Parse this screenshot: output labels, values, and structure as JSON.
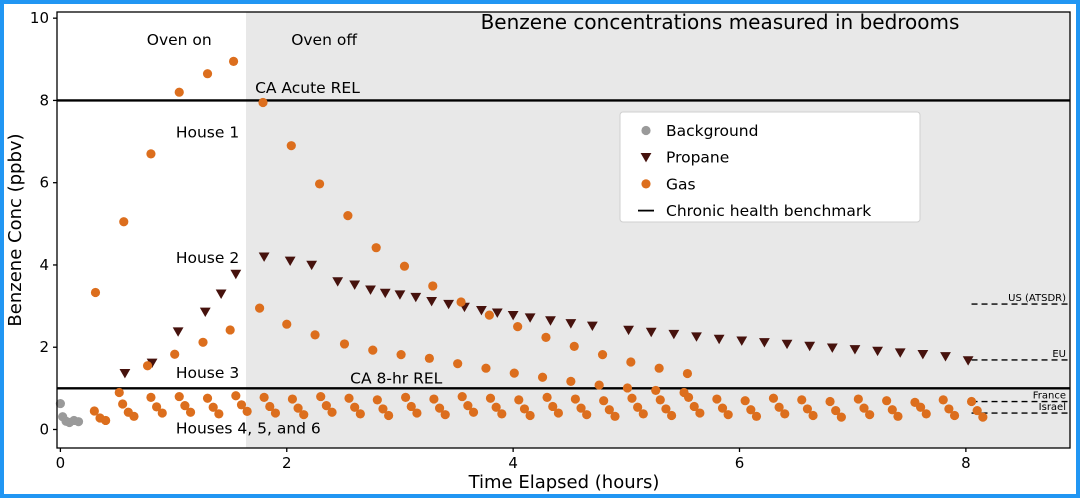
{
  "window": {
    "border_color": "#2196f3",
    "background": "#ffffff"
  },
  "chart_data": {
    "type": "scatter",
    "title": "Benzene concentrations measured in bedrooms",
    "xlabel": "Time Elapsed (hours)",
    "ylabel": "Benzene Conc (ppbv)",
    "xlim": [
      -0.03,
      8.92
    ],
    "ylim": [
      -0.45,
      10.15
    ],
    "xticks": [
      0,
      2,
      4,
      6,
      8
    ],
    "yticks": [
      0,
      2,
      4,
      6,
      8,
      10
    ],
    "grid": false,
    "colors": {
      "gas": "#dc6e1d",
      "propane": "#46120d",
      "background": "#9a9a9a",
      "region": "#e8e8e8",
      "benchmark": "#000000"
    },
    "oven_off_region": {
      "x_start": 1.64,
      "meaning": "Oven off period shading"
    },
    "reference_lines": [
      {
        "label": "CA Acute REL",
        "y": 8
      },
      {
        "label": "CA 8-hr REL",
        "y": 1
      }
    ],
    "benchmark_lines": [
      {
        "label": "US (ATSDR)",
        "y": 3.05
      },
      {
        "label": "EU",
        "y": 1.69
      },
      {
        "label": "France",
        "y": 0.68
      },
      {
        "label": "Israel",
        "y": 0.4
      }
    ],
    "annotations": [
      {
        "text": "Oven on",
        "x": 1.05,
        "y": 9.35,
        "anchor": "middle"
      },
      {
        "text": "Oven off",
        "x": 2.33,
        "y": 9.35,
        "anchor": "middle"
      },
      {
        "text": "CA Acute REL",
        "x": 1.72,
        "y": 8.18,
        "anchor": "start"
      },
      {
        "text": "House 1",
        "x": 1.02,
        "y": 7.1,
        "anchor": "start"
      },
      {
        "text": "House 2",
        "x": 1.02,
        "y": 4.05,
        "anchor": "start"
      },
      {
        "text": "House 3",
        "x": 1.02,
        "y": 1.25,
        "anchor": "start"
      },
      {
        "text": "Houses 4, 5, and 6",
        "x": 1.02,
        "y": -0.1,
        "anchor": "start"
      },
      {
        "text": "CA 8-hr REL",
        "x": 2.56,
        "y": 1.12,
        "anchor": "start"
      }
    ],
    "legend": [
      {
        "label": "Background",
        "marker": "circle",
        "series": "background"
      },
      {
        "label": "Propane",
        "marker": "triangle-down",
        "series": "propane"
      },
      {
        "label": "Gas",
        "marker": "circle",
        "series": "gas"
      },
      {
        "label": "Chronic health benchmark",
        "marker": "dash",
        "series": "benchmark"
      }
    ],
    "series": {
      "background": {
        "marker": "circle",
        "points": [
          [
            0.0,
            0.63
          ],
          [
            0.02,
            0.31
          ],
          [
            0.05,
            0.2
          ],
          [
            0.08,
            0.17
          ],
          [
            0.12,
            0.22
          ],
          [
            0.16,
            0.19
          ]
        ]
      },
      "propane": {
        "marker": "triangle-down",
        "label": "House 2",
        "points": [
          [
            0.57,
            1.37
          ],
          [
            0.81,
            1.62
          ],
          [
            1.04,
            2.38
          ],
          [
            1.28,
            2.86
          ],
          [
            1.42,
            3.3
          ],
          [
            1.55,
            3.78
          ],
          [
            1.8,
            4.2
          ],
          [
            2.03,
            4.1
          ],
          [
            2.22,
            4.0
          ],
          [
            2.45,
            3.6
          ],
          [
            2.6,
            3.52
          ],
          [
            2.74,
            3.4
          ],
          [
            2.87,
            3.32
          ],
          [
            3.0,
            3.28
          ],
          [
            3.14,
            3.22
          ],
          [
            3.28,
            3.12
          ],
          [
            3.43,
            3.05
          ],
          [
            3.57,
            2.98
          ],
          [
            3.72,
            2.9
          ],
          [
            3.86,
            2.84
          ],
          [
            4.0,
            2.78
          ],
          [
            4.15,
            2.72
          ],
          [
            4.33,
            2.65
          ],
          [
            4.51,
            2.58
          ],
          [
            4.7,
            2.52
          ],
          [
            5.02,
            2.42
          ],
          [
            5.22,
            2.37
          ],
          [
            5.42,
            2.32
          ],
          [
            5.62,
            2.26
          ],
          [
            5.82,
            2.2
          ],
          [
            6.02,
            2.16
          ],
          [
            6.22,
            2.12
          ],
          [
            6.42,
            2.08
          ],
          [
            6.62,
            2.03
          ],
          [
            6.82,
            1.99
          ],
          [
            7.02,
            1.95
          ],
          [
            7.22,
            1.91
          ],
          [
            7.42,
            1.87
          ],
          [
            7.62,
            1.83
          ],
          [
            7.82,
            1.78
          ],
          [
            8.02,
            1.68
          ]
        ]
      },
      "gas": {
        "marker": "circle",
        "groups": [
          {
            "label": "House 1",
            "points": [
              [
                0.31,
                3.33
              ],
              [
                0.56,
                5.05
              ],
              [
                0.8,
                6.7
              ],
              [
                1.05,
                8.2
              ],
              [
                1.3,
                8.65
              ],
              [
                1.53,
                8.95
              ],
              [
                1.79,
                7.95
              ],
              [
                2.04,
                6.9
              ],
              [
                2.29,
                5.97
              ],
              [
                2.54,
                5.2
              ],
              [
                2.79,
                4.42
              ],
              [
                3.04,
                3.97
              ],
              [
                3.29,
                3.49
              ],
              [
                3.54,
                3.1
              ],
              [
                3.79,
                2.78
              ],
              [
                4.04,
                2.5
              ],
              [
                4.29,
                2.24
              ],
              [
                4.54,
                2.02
              ],
              [
                4.79,
                1.82
              ],
              [
                5.04,
                1.64
              ],
              [
                5.29,
                1.49
              ],
              [
                5.54,
                1.36
              ]
            ]
          },
          {
            "label": "House 3",
            "points": [
              [
                0.52,
                0.9
              ],
              [
                0.77,
                1.55
              ],
              [
                1.01,
                1.83
              ],
              [
                1.26,
                2.12
              ],
              [
                1.5,
                2.42
              ],
              [
                1.76,
                2.95
              ],
              [
                2.0,
                2.56
              ],
              [
                2.25,
                2.3
              ],
              [
                2.51,
                2.08
              ],
              [
                2.76,
                1.93
              ],
              [
                3.01,
                1.82
              ],
              [
                3.26,
                1.73
              ],
              [
                3.51,
                1.6
              ],
              [
                3.76,
                1.49
              ],
              [
                4.01,
                1.37
              ],
              [
                4.26,
                1.27
              ],
              [
                4.51,
                1.17
              ],
              [
                4.76,
                1.08
              ],
              [
                5.01,
                1.01
              ],
              [
                5.26,
                0.95
              ],
              [
                5.51,
                0.9
              ]
            ]
          },
          {
            "label": "House 4",
            "points": [
              [
                0.3,
                0.45
              ],
              [
                0.55,
                0.62
              ],
              [
                0.8,
                0.78
              ],
              [
                1.05,
                0.8
              ],
              [
                1.3,
                0.76
              ],
              [
                1.55,
                0.82
              ],
              [
                1.8,
                0.78
              ],
              [
                2.05,
                0.74
              ],
              [
                2.3,
                0.8
              ],
              [
                2.55,
                0.76
              ],
              [
                2.8,
                0.72
              ],
              [
                3.05,
                0.78
              ],
              [
                3.3,
                0.74
              ],
              [
                3.55,
                0.8
              ],
              [
                3.8,
                0.76
              ],
              [
                4.05,
                0.72
              ],
              [
                4.3,
                0.78
              ],
              [
                4.55,
                0.74
              ],
              [
                4.8,
                0.7
              ],
              [
                5.05,
                0.76
              ],
              [
                5.3,
                0.72
              ],
              [
                5.55,
                0.78
              ],
              [
                5.8,
                0.74
              ],
              [
                6.05,
                0.7
              ],
              [
                6.3,
                0.76
              ],
              [
                6.55,
                0.72
              ],
              [
                6.8,
                0.68
              ],
              [
                7.05,
                0.74
              ],
              [
                7.3,
                0.7
              ],
              [
                7.55,
                0.66
              ],
              [
                7.8,
                0.72
              ],
              [
                8.05,
                0.68
              ]
            ]
          },
          {
            "label": "House 5",
            "points": [
              [
                0.35,
                0.28
              ],
              [
                0.6,
                0.42
              ],
              [
                0.85,
                0.55
              ],
              [
                1.1,
                0.58
              ],
              [
                1.35,
                0.54
              ],
              [
                1.6,
                0.6
              ],
              [
                1.85,
                0.56
              ],
              [
                2.1,
                0.52
              ],
              [
                2.35,
                0.58
              ],
              [
                2.6,
                0.54
              ],
              [
                2.85,
                0.5
              ],
              [
                3.1,
                0.56
              ],
              [
                3.35,
                0.52
              ],
              [
                3.6,
                0.58
              ],
              [
                3.85,
                0.54
              ],
              [
                4.1,
                0.5
              ],
              [
                4.35,
                0.56
              ],
              [
                4.6,
                0.52
              ],
              [
                4.85,
                0.48
              ],
              [
                5.1,
                0.54
              ],
              [
                5.35,
                0.5
              ],
              [
                5.6,
                0.56
              ],
              [
                5.85,
                0.52
              ],
              [
                6.1,
                0.48
              ],
              [
                6.35,
                0.54
              ],
              [
                6.6,
                0.5
              ],
              [
                6.85,
                0.46
              ],
              [
                7.1,
                0.52
              ],
              [
                7.35,
                0.48
              ],
              [
                7.6,
                0.54
              ],
              [
                7.85,
                0.5
              ],
              [
                8.1,
                0.46
              ]
            ]
          },
          {
            "label": "House 6",
            "points": [
              [
                0.4,
                0.22
              ],
              [
                0.65,
                0.32
              ],
              [
                0.9,
                0.4
              ],
              [
                1.15,
                0.42
              ],
              [
                1.4,
                0.38
              ],
              [
                1.65,
                0.44
              ],
              [
                1.9,
                0.4
              ],
              [
                2.15,
                0.36
              ],
              [
                2.4,
                0.42
              ],
              [
                2.65,
                0.38
              ],
              [
                2.9,
                0.34
              ],
              [
                3.15,
                0.4
              ],
              [
                3.4,
                0.36
              ],
              [
                3.65,
                0.42
              ],
              [
                3.9,
                0.38
              ],
              [
                4.15,
                0.34
              ],
              [
                4.4,
                0.4
              ],
              [
                4.65,
                0.36
              ],
              [
                4.9,
                0.32
              ],
              [
                5.15,
                0.38
              ],
              [
                5.4,
                0.34
              ],
              [
                5.65,
                0.4
              ],
              [
                5.9,
                0.36
              ],
              [
                6.15,
                0.32
              ],
              [
                6.4,
                0.38
              ],
              [
                6.65,
                0.34
              ],
              [
                6.9,
                0.3
              ],
              [
                7.15,
                0.36
              ],
              [
                7.4,
                0.32
              ],
              [
                7.65,
                0.38
              ],
              [
                7.9,
                0.34
              ],
              [
                8.15,
                0.3
              ]
            ]
          }
        ]
      }
    }
  }
}
